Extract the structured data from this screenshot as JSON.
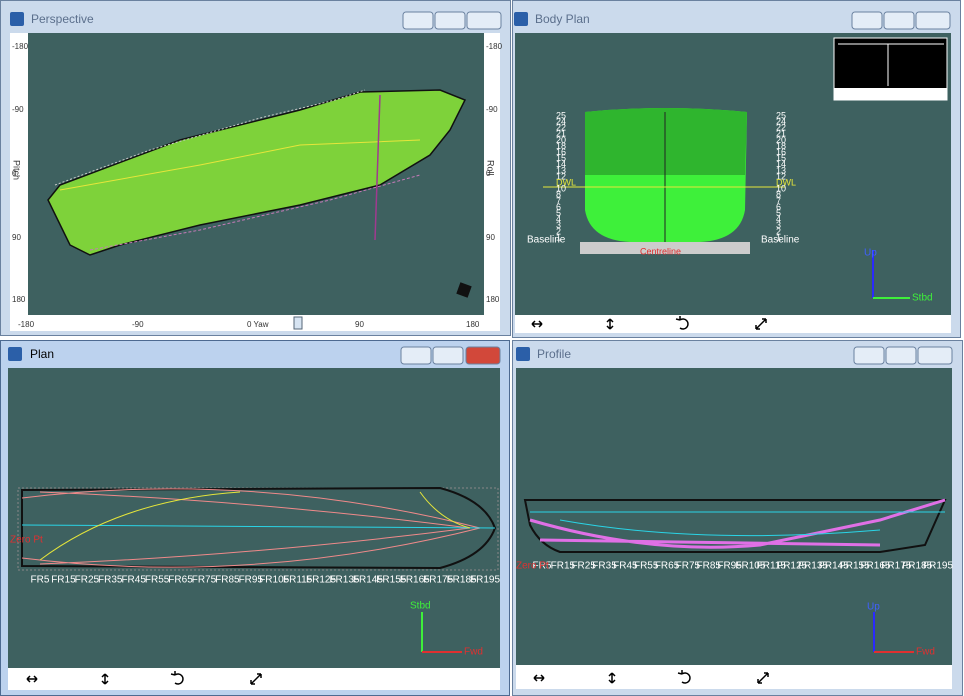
{
  "windows": [
    {
      "title": "Perspective",
      "left_ticks": [
        "-180",
        "-90",
        "0",
        "90",
        "180"
      ],
      "right_ticks": [
        "-180",
        "-90",
        "0",
        "90",
        "180"
      ],
      "bottom_ticks": [
        "-180",
        "-90",
        "0 Yaw",
        "90",
        "180"
      ],
      "pitch_label": "Pitch",
      "roll_label": "Roll"
    },
    {
      "title": "Body Plan",
      "waterlines": [
        "25",
        "24",
        "22",
        "21",
        "20",
        "18",
        "16",
        "15",
        "14",
        "13",
        "12",
        "DWL",
        "10",
        "8",
        "7",
        "6",
        "5",
        "4",
        "3",
        "2",
        "1"
      ],
      "baseline": "Baseline",
      "centreline": "Centreline",
      "up": "Up",
      "stbd": "Stbd"
    },
    {
      "title": "Plan",
      "frames": [
        "FR5",
        "FR15",
        "FR25",
        "FR35",
        "FR45",
        "FR55",
        "FR65",
        "FR75",
        "FR85",
        "FR95",
        "FR105",
        "FR115",
        "FR125",
        "FR135",
        "FR145",
        "FR155",
        "FR165",
        "FR175",
        "FR185",
        "FR195"
      ],
      "zero": "Zero Pt",
      "stbd": "Stbd",
      "fwd": "Fwd"
    },
    {
      "title": "Profile",
      "frames": [
        "FR5",
        "FR15",
        "FR25",
        "FR35",
        "FR45",
        "FR55",
        "FR65",
        "FR75",
        "FR85",
        "FR95",
        "FR105",
        "FR115",
        "FR125",
        "FR135",
        "FR145",
        "FR155",
        "FR165",
        "FR175",
        "FR185",
        "FR195"
      ],
      "zero": "Zero Pt",
      "up": "Up",
      "fwd": "Fwd"
    }
  ]
}
